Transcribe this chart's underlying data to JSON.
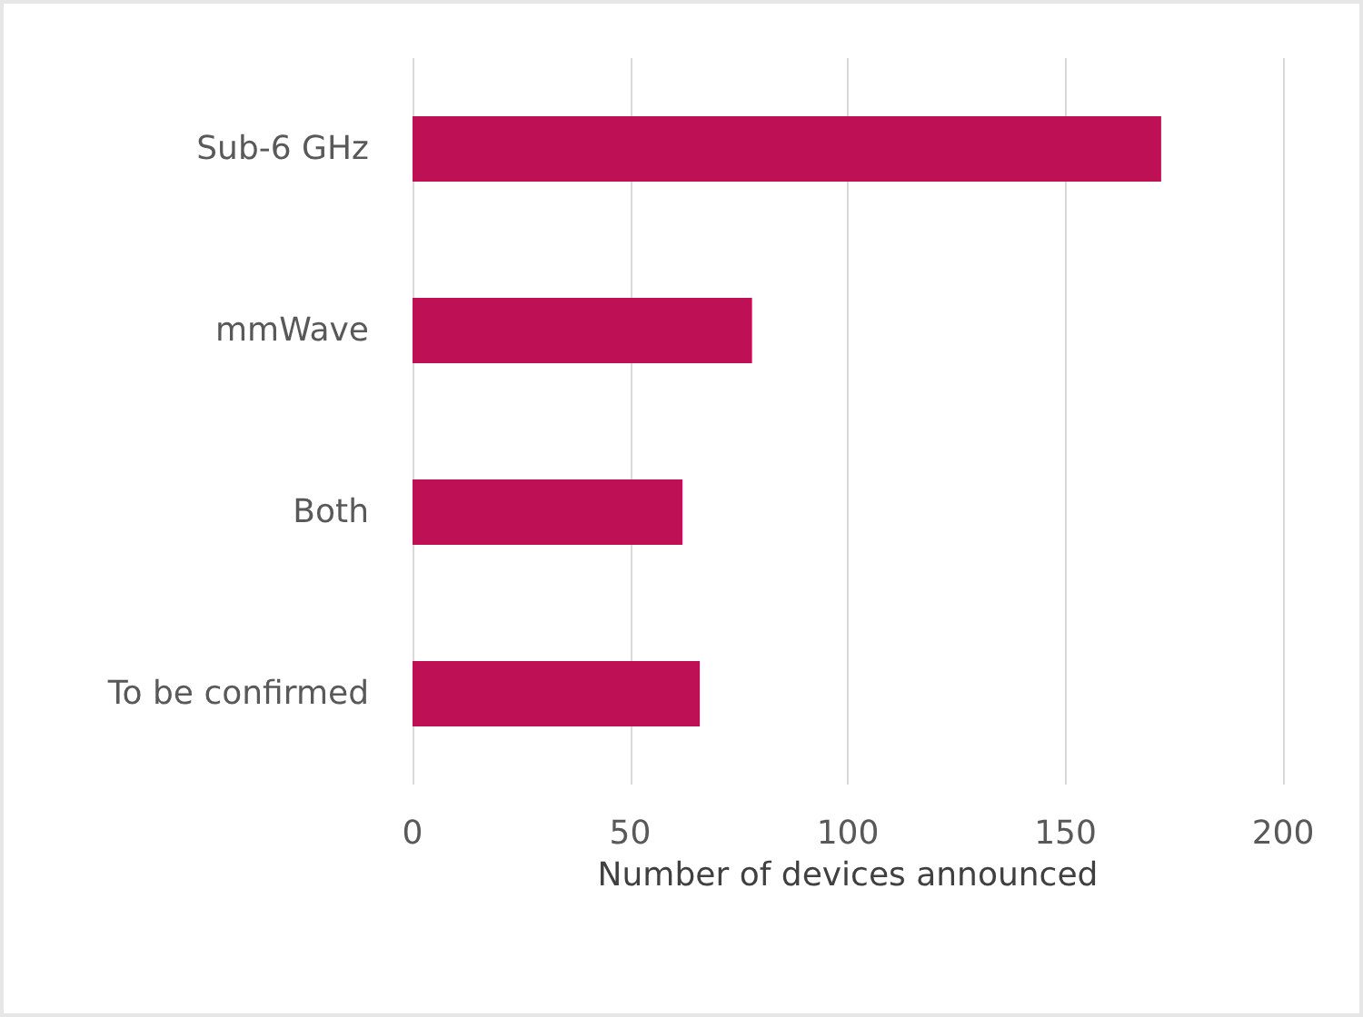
{
  "chart_data": {
    "type": "bar",
    "orientation": "horizontal",
    "xlabel": "Number of devices announced",
    "categories": [
      "Sub-6 GHz",
      "mmWave",
      "Both",
      "To be confirmed"
    ],
    "values": [
      172,
      78,
      62,
      66
    ],
    "color": "#be1055",
    "xlim": [
      0,
      200
    ],
    "xticks": [
      0,
      50,
      100,
      150,
      200
    ],
    "grid": "x"
  }
}
